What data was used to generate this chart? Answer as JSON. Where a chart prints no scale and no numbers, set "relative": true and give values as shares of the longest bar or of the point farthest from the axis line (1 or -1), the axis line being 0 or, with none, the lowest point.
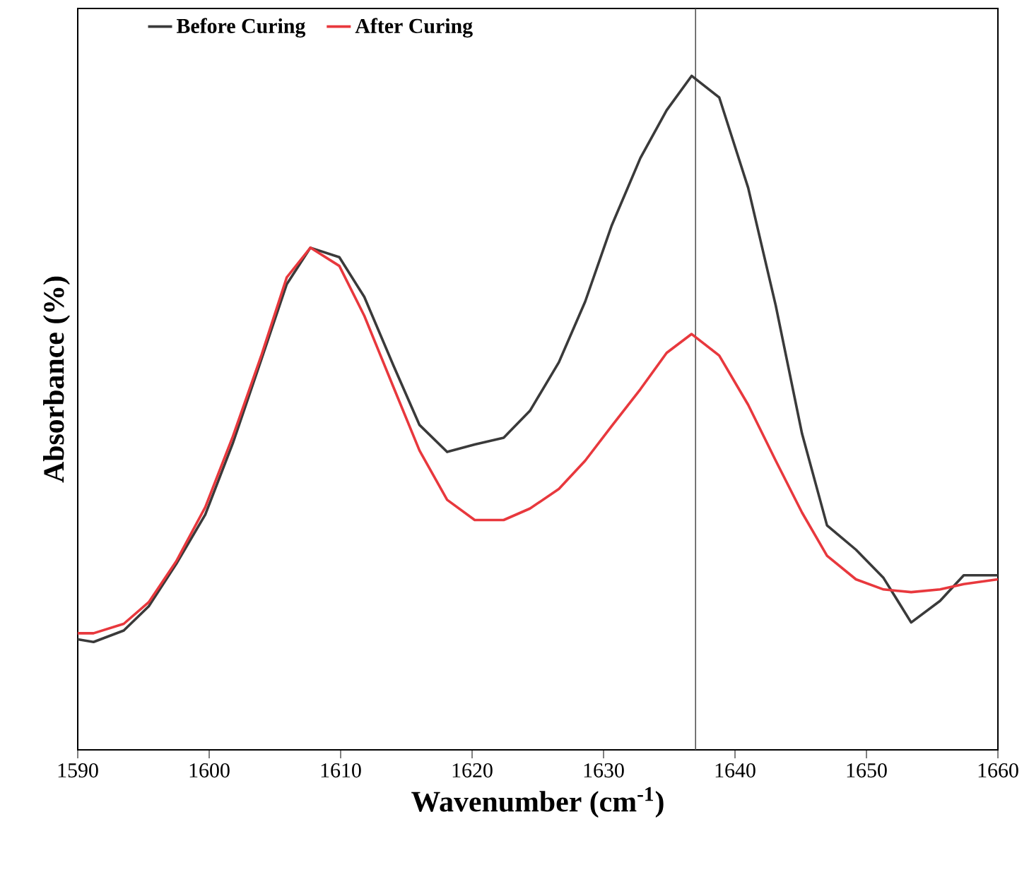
{
  "chart_data": {
    "type": "line",
    "xlabel": "Wavenumber (cm$^{-1}$)",
    "ylabel": "Absorbance (%)",
    "relative": true,
    "xlim": [
      1590,
      1660
    ],
    "xticks": [
      1590,
      1600,
      1610,
      1620,
      1630,
      1640,
      1650,
      1660
    ],
    "legend": "top left",
    "grid": false,
    "marker": "none",
    "line_style": "solid",
    "x": [
      1590,
      1591.2,
      1593.5,
      1595.4,
      1597.5,
      1599.7,
      1601.8,
      1604.0,
      1605.9,
      1607.7,
      1609.9,
      1611.8,
      1614.0,
      1616.0,
      1618.1,
      1620.2,
      1622.4,
      1624.4,
      1626.6,
      1628.6,
      1630.6,
      1632.8,
      1634.8,
      1636.7,
      1638.8,
      1641.0,
      1643.1,
      1645.1,
      1647.0,
      1649.2,
      1651.3,
      1653.4,
      1655.6,
      1657.4,
      1660
    ],
    "series": [
      {
        "name": "Before Curing",
        "color": "#3a3a3a",
        "values": [
          0.164,
          0.16,
          0.177,
          0.213,
          0.276,
          0.349,
          0.455,
          0.581,
          0.691,
          0.745,
          0.731,
          0.672,
          0.571,
          0.482,
          0.442,
          0.453,
          0.463,
          0.503,
          0.575,
          0.665,
          0.777,
          0.878,
          0.949,
          1,
          0.968,
          0.834,
          0.659,
          0.469,
          0.333,
          0.297,
          0.255,
          0.189,
          0.221,
          0.259,
          0.259
        ]
      },
      {
        "name": "After Curing",
        "color": "#e8383d",
        "values": [
          0.173,
          0.173,
          0.187,
          0.219,
          0.28,
          0.36,
          0.465,
          0.587,
          0.701,
          0.745,
          0.718,
          0.644,
          0.539,
          0.444,
          0.371,
          0.341,
          0.341,
          0.358,
          0.387,
          0.429,
          0.48,
          0.535,
          0.589,
          0.617,
          0.585,
          0.512,
          0.429,
          0.352,
          0.288,
          0.253,
          0.238,
          0.234,
          0.238,
          0.246,
          0.253
        ]
      }
    ],
    "ref_lines": [
      {
        "axis": "x",
        "value": 1637,
        "color": "#555555"
      }
    ]
  }
}
